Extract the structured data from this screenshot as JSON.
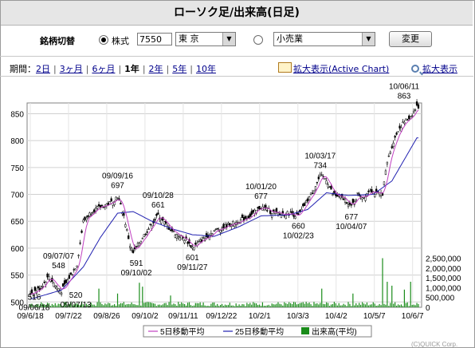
{
  "title": "ローソク足/出来高(日足)",
  "controls": {
    "label": "銘柄切替",
    "stock_radio_label": "株式",
    "code_value": "7550",
    "market_value": "東 京",
    "industry_value": "小売業",
    "change_button": "変更"
  },
  "periods": {
    "label": "期間：",
    "items": [
      {
        "label": "2日",
        "current": false
      },
      {
        "label": "3ヶ月",
        "current": false
      },
      {
        "label": "6ヶ月",
        "current": false
      },
      {
        "label": "1年",
        "current": true
      },
      {
        "label": "2年",
        "current": false
      },
      {
        "label": "5年",
        "current": false
      },
      {
        "label": "10年",
        "current": false
      }
    ]
  },
  "zoom_active_label": "拡大表示(Active Chart)",
  "zoom_label": "拡大表示",
  "chart_data": {
    "type": "candlestick",
    "price_axis": {
      "ticks": [
        500,
        550,
        600,
        650,
        700,
        750,
        800,
        850
      ],
      "range": [
        490,
        870
      ]
    },
    "volume_axis": {
      "ticks": [
        0,
        500000,
        1000000,
        1500000,
        2000000,
        2500000
      ],
      "tick_labels": [
        "0",
        "500,000",
        "1,000,000",
        "1,500,000",
        "2,000,000",
        "2,500,000"
      ],
      "range": [
        0,
        2600000
      ]
    },
    "x_tick_labels": [
      "09/6/18",
      "09/7/22",
      "09/8/26",
      "09/10/2",
      "09/11/11",
      "09/12/22",
      "10/2/1",
      "10/3/3",
      "10/4/2",
      "10/5/7",
      "10/6/7"
    ],
    "price_points": [
      {
        "i": 0,
        "v": 516
      },
      {
        "i": 6,
        "v": 525
      },
      {
        "i": 12,
        "v": 548
      },
      {
        "i": 16,
        "v": 530
      },
      {
        "i": 20,
        "v": 520
      },
      {
        "i": 25,
        "v": 545
      },
      {
        "i": 30,
        "v": 570
      },
      {
        "i": 34,
        "v": 650
      },
      {
        "i": 40,
        "v": 670
      },
      {
        "i": 46,
        "v": 678
      },
      {
        "i": 52,
        "v": 685
      },
      {
        "i": 56,
        "v": 697
      },
      {
        "i": 60,
        "v": 660
      },
      {
        "i": 64,
        "v": 605
      },
      {
        "i": 66,
        "v": 591
      },
      {
        "i": 72,
        "v": 620
      },
      {
        "i": 78,
        "v": 645
      },
      {
        "i": 82,
        "v": 661
      },
      {
        "i": 88,
        "v": 640
      },
      {
        "i": 94,
        "v": 625
      },
      {
        "i": 100,
        "v": 615
      },
      {
        "i": 104,
        "v": 601
      },
      {
        "i": 110,
        "v": 615
      },
      {
        "i": 118,
        "v": 632
      },
      {
        "i": 126,
        "v": 642
      },
      {
        "i": 134,
        "v": 650
      },
      {
        "i": 142,
        "v": 662
      },
      {
        "i": 148,
        "v": 677
      },
      {
        "i": 154,
        "v": 668
      },
      {
        "i": 160,
        "v": 663
      },
      {
        "i": 166,
        "v": 665
      },
      {
        "i": 172,
        "v": 660
      },
      {
        "i": 178,
        "v": 690
      },
      {
        "i": 182,
        "v": 710
      },
      {
        "i": 186,
        "v": 734
      },
      {
        "i": 190,
        "v": 728
      },
      {
        "i": 194,
        "v": 700
      },
      {
        "i": 198,
        "v": 695
      },
      {
        "i": 202,
        "v": 690
      },
      {
        "i": 206,
        "v": 677
      },
      {
        "i": 210,
        "v": 700
      },
      {
        "i": 214,
        "v": 695
      },
      {
        "i": 218,
        "v": 710
      },
      {
        "i": 222,
        "v": 700
      },
      {
        "i": 226,
        "v": 702
      },
      {
        "i": 229,
        "v": 760
      },
      {
        "i": 232,
        "v": 790
      },
      {
        "i": 236,
        "v": 820
      },
      {
        "i": 240,
        "v": 835
      },
      {
        "i": 244,
        "v": 845
      },
      {
        "i": 248,
        "v": 863
      }
    ],
    "ma25_points": [
      {
        "i": 0,
        "v": 505
      },
      {
        "i": 20,
        "v": 522
      },
      {
        "i": 34,
        "v": 565
      },
      {
        "i": 45,
        "v": 620
      },
      {
        "i": 56,
        "v": 665
      },
      {
        "i": 66,
        "v": 668
      },
      {
        "i": 78,
        "v": 650
      },
      {
        "i": 92,
        "v": 635
      },
      {
        "i": 104,
        "v": 625
      },
      {
        "i": 118,
        "v": 622
      },
      {
        "i": 134,
        "v": 640
      },
      {
        "i": 148,
        "v": 660
      },
      {
        "i": 166,
        "v": 662
      },
      {
        "i": 178,
        "v": 672
      },
      {
        "i": 190,
        "v": 703
      },
      {
        "i": 204,
        "v": 698
      },
      {
        "i": 220,
        "v": 700
      },
      {
        "i": 232,
        "v": 725
      },
      {
        "i": 240,
        "v": 765
      },
      {
        "i": 248,
        "v": 805
      }
    ],
    "volume_spikes": [
      {
        "i": 70,
        "v": 1250000
      },
      {
        "i": 72,
        "v": 1050000
      },
      {
        "i": 44,
        "v": 950000
      },
      {
        "i": 56,
        "v": 700000
      },
      {
        "i": 90,
        "v": 600000
      },
      {
        "i": 187,
        "v": 950000
      },
      {
        "i": 207,
        "v": 700000
      },
      {
        "i": 226,
        "v": 2500000
      },
      {
        "i": 229,
        "v": 1300000
      },
      {
        "i": 232,
        "v": 1100000
      },
      {
        "i": 240,
        "v": 900000
      },
      {
        "i": 244,
        "v": 1300000
      }
    ],
    "annotations": [
      {
        "date": "09/06/18",
        "value": "516"
      },
      {
        "date": "09/07/07",
        "value": "548"
      },
      {
        "date": "09/07/13",
        "value": "520"
      },
      {
        "date": "09/09/16",
        "value": "697"
      },
      {
        "date": "09/10/02",
        "value": "591"
      },
      {
        "date": "09/10/28",
        "value": "661"
      },
      {
        "date": "09/11/27",
        "value": "601"
      },
      {
        "date": "10/01/20",
        "value": "677"
      },
      {
        "date": "10/02/23",
        "value": "660"
      },
      {
        "date": "10/03/17",
        "value": "734"
      },
      {
        "date": "10/04/07",
        "value": "677"
      },
      {
        "date": "10/06/11",
        "value": "863"
      }
    ],
    "legend": [
      "5日移動平均",
      "25日移動平均",
      "出来高(平均)"
    ],
    "colors": {
      "candle_up": "#ffffff",
      "candle_down": "#000000",
      "ma5": "#c040c0",
      "ma25": "#2020b0",
      "volume": "#1a8c1a"
    }
  },
  "copyright": "(C)QUICK Corp."
}
